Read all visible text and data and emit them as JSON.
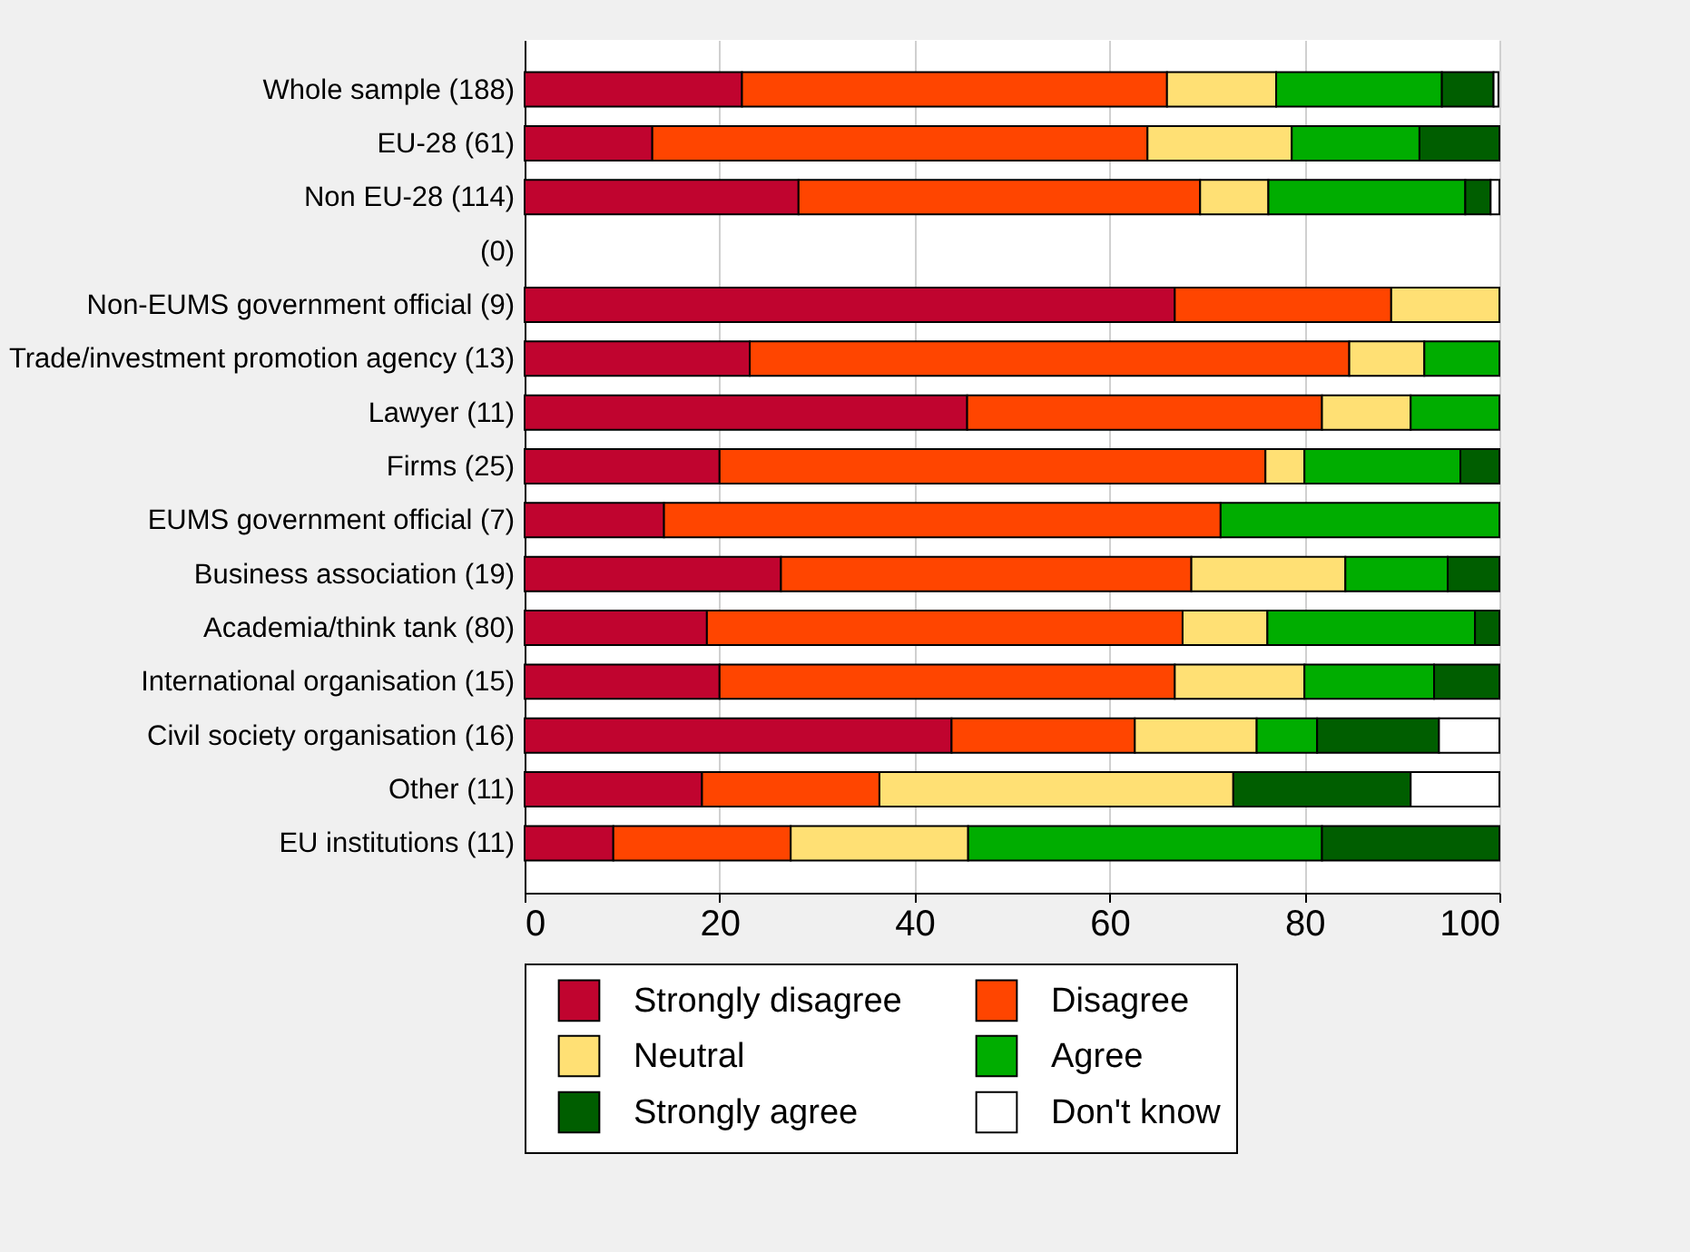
{
  "chart_data": {
    "type": "bar",
    "orientation": "horizontal",
    "stacked": true,
    "categories": [
      "Whole sample (188)",
      "EU-28 (61)",
      "Non EU-28 (114)",
      "(0)",
      "Non-EUMS government official (9)",
      "Trade/investment promotion agency (13)",
      "Lawyer (11)",
      "Firms (25)",
      "EUMS government official (7)",
      "Business association (19)",
      "Academia/think tank (80)",
      "International organisation (15)",
      "Civil society organisation (16)",
      "Other (11)",
      "EU institutions (11)"
    ],
    "series": [
      {
        "name": "Strongly disagree",
        "color": "#c0042f",
        "values": [
          22.3,
          13.1,
          28.1,
          null,
          66.7,
          23.1,
          45.4,
          20.0,
          14.3,
          26.3,
          18.7,
          20.0,
          43.8,
          18.2,
          9.1
        ]
      },
      {
        "name": "Disagree",
        "color": "#ff4500",
        "values": [
          43.6,
          50.8,
          41.2,
          null,
          22.2,
          61.5,
          36.4,
          56.0,
          57.1,
          42.1,
          48.8,
          46.7,
          18.8,
          18.2,
          18.2
        ]
      },
      {
        "name": "Neutral",
        "color": "#ffe074",
        "values": [
          11.2,
          14.8,
          7.0,
          null,
          11.1,
          7.7,
          9.1,
          4.0,
          null,
          15.8,
          8.7,
          13.3,
          12.5,
          36.3,
          18.2
        ]
      },
      {
        "name": "Agree",
        "color": "#00ad00",
        "values": [
          17.0,
          13.1,
          20.2,
          null,
          null,
          7.7,
          9.1,
          16.0,
          28.6,
          10.5,
          21.3,
          13.3,
          6.2,
          null,
          36.3
        ]
      },
      {
        "name": "Strongly agree",
        "color": "#005e00",
        "values": [
          5.3,
          8.2,
          2.6,
          null,
          null,
          null,
          null,
          4.0,
          null,
          5.3,
          2.5,
          6.7,
          12.5,
          18.2,
          18.2
        ]
      },
      {
        "name": "Don't know",
        "color": "#ffffff",
        "values": [
          0.5,
          null,
          0.9,
          null,
          null,
          null,
          null,
          null,
          null,
          null,
          null,
          null,
          6.2,
          9.1,
          null
        ]
      }
    ],
    "xlim": [
      0,
      100
    ],
    "xticks": [
      0,
      20,
      40,
      60,
      80,
      100
    ],
    "grid": "x",
    "legend": "bottom"
  }
}
